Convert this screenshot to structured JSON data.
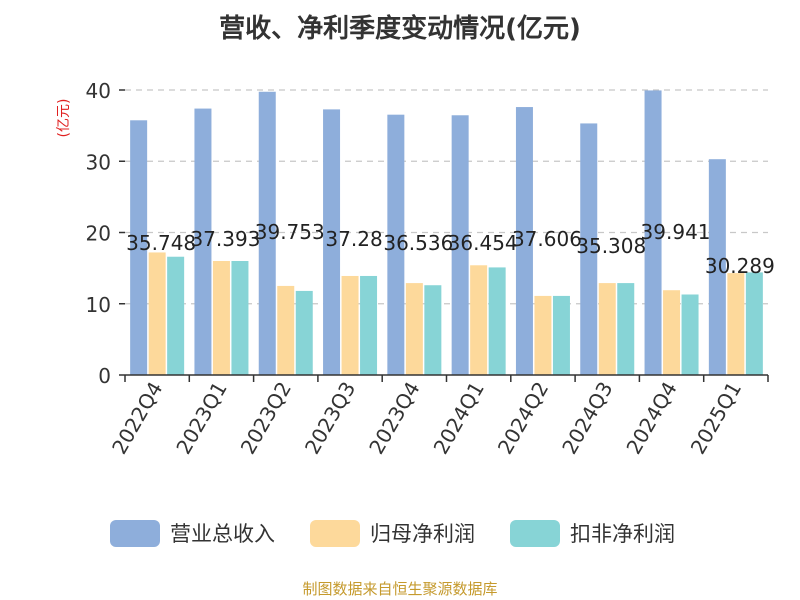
{
  "chart_data": {
    "type": "bar",
    "title": "营收、净利季度变动情况(亿元)",
    "ylabel": "(亿元)",
    "ylim": [
      0,
      40
    ],
    "yticks": [
      "0",
      "10",
      "20",
      "30",
      "40"
    ],
    "grid": true,
    "legend_position": "bottom",
    "categories": [
      "2022Q4",
      "2023Q1",
      "2023Q2",
      "2023Q3",
      "2023Q4",
      "2024Q1",
      "2024Q2",
      "2024Q3",
      "2024Q4",
      "2025Q1"
    ],
    "series": [
      {
        "name": "营业总收入",
        "color": "#8eaedb",
        "values": [
          35.748,
          37.393,
          39.753,
          37.28,
          36.536,
          36.454,
          37.606,
          35.308,
          39.941,
          30.289
        ],
        "labels": [
          "35.748",
          "37.393",
          "39.753",
          "37.28",
          "36.536",
          "36.454",
          "37.606",
          "35.308",
          "39.941",
          "30.289"
        ]
      },
      {
        "name": "归母净利润",
        "color": "#fdd99b",
        "values": [
          17.2,
          16.0,
          12.5,
          13.9,
          12.9,
          15.4,
          11.1,
          12.9,
          11.9,
          14.3
        ]
      },
      {
        "name": "扣非净利润",
        "color": "#87d4d6",
        "values": [
          16.6,
          16.0,
          11.8,
          13.9,
          12.6,
          15.1,
          11.1,
          12.9,
          11.3,
          14.4
        ]
      }
    ]
  },
  "source_text": "制图数据来自恒生聚源数据库"
}
